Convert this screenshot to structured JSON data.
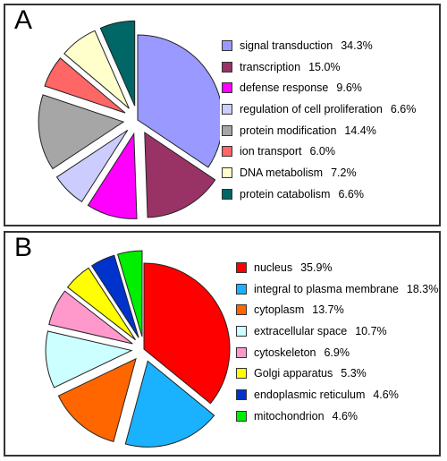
{
  "chart_data": [
    {
      "type": "pie",
      "panel_label": "A",
      "slices": [
        {
          "label": "signal transduction",
          "value": 34.3,
          "value_label": "34.3%",
          "color": "#9999ff",
          "exploded": false
        },
        {
          "label": "transcription",
          "value": 15.0,
          "value_label": "15.0%",
          "color": "#993366",
          "exploded": true
        },
        {
          "label": "defense response",
          "value": 9.6,
          "value_label": "9.6%",
          "color": "#ff00ff",
          "exploded": true
        },
        {
          "label": "regulation of cell proliferation",
          "value": 6.6,
          "value_label": "6.6%",
          "color": "#ccccff",
          "exploded": true
        },
        {
          "label": "protein modification",
          "value": 14.4,
          "value_label": "14.4%",
          "color": "#a6a6a6",
          "exploded": true
        },
        {
          "label": "ion transport",
          "value": 6.0,
          "value_label": "6.0%",
          "color": "#ff6666",
          "exploded": true
        },
        {
          "label": "DNA metabolism",
          "value": 7.2,
          "value_label": "7.2%",
          "color": "#ffffcc",
          "exploded": true
        },
        {
          "label": "protein catabolism",
          "value": 6.6,
          "value_label": "6.6%",
          "color": "#006666",
          "exploded": true
        }
      ],
      "legend_position": "right"
    },
    {
      "type": "pie",
      "panel_label": "B",
      "slices": [
        {
          "label": "nucleus",
          "value": 35.9,
          "value_label": "35.9%",
          "color": "#ff0000",
          "exploded": false
        },
        {
          "label": "integral to plasma membrane",
          "value": 18.3,
          "value_label": "18.3%",
          "color": "#1ab2ff",
          "exploded": true
        },
        {
          "label": "cytoplasm",
          "value": 13.7,
          "value_label": "13.7%",
          "color": "#ff6600",
          "exploded": true
        },
        {
          "label": "extracellular space",
          "value": 10.7,
          "value_label": "10.7%",
          "color": "#ccffff",
          "exploded": true
        },
        {
          "label": "cytoskeleton",
          "value": 6.9,
          "value_label": "6.9%",
          "color": "#ff99cc",
          "exploded": true
        },
        {
          "label": "Golgi apparatus",
          "value": 5.3,
          "value_label": "5.3%",
          "color": "#ffff00",
          "exploded": true
        },
        {
          "label": "endoplasmic reticulum",
          "value": 4.6,
          "value_label": "4.6%",
          "color": "#0033cc",
          "exploded": true
        },
        {
          "label": "mitochondrion",
          "value": 4.6,
          "value_label": "4.6%",
          "color": "#00ee00",
          "exploded": true
        }
      ],
      "legend_position": "right"
    }
  ]
}
